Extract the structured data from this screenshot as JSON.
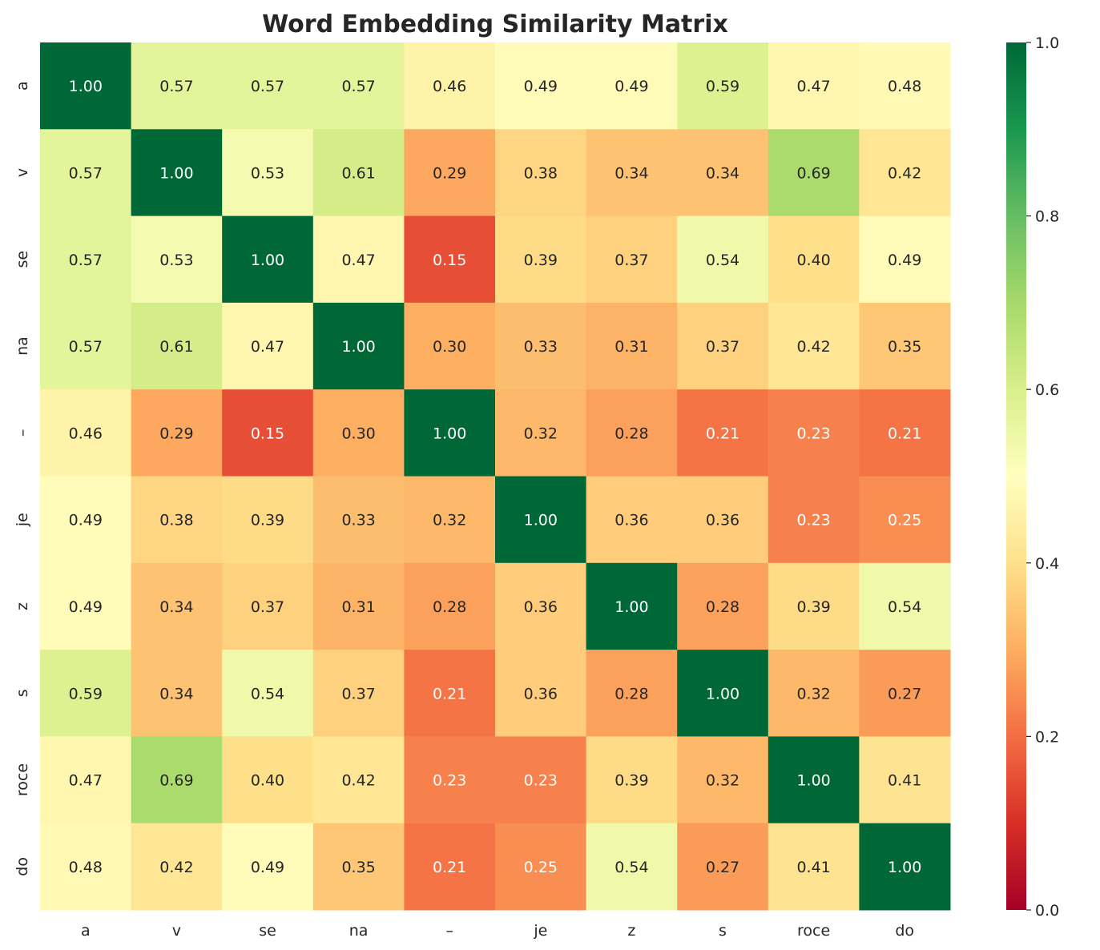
{
  "chart_data": {
    "type": "heatmap",
    "title": "Word Embedding Similarity Matrix",
    "x_labels": [
      "a",
      "v",
      "se",
      "na",
      "–",
      "je",
      "z",
      "s",
      "roce",
      "do"
    ],
    "y_labels": [
      "a",
      "v",
      "se",
      "na",
      "–",
      "je",
      "z",
      "s",
      "roce",
      "do"
    ],
    "values": [
      [
        1.0,
        0.57,
        0.57,
        0.57,
        0.46,
        0.49,
        0.49,
        0.59,
        0.47,
        0.48
      ],
      [
        0.57,
        1.0,
        0.53,
        0.61,
        0.29,
        0.38,
        0.34,
        0.34,
        0.69,
        0.42
      ],
      [
        0.57,
        0.53,
        1.0,
        0.47,
        0.15,
        0.39,
        0.37,
        0.54,
        0.4,
        0.49
      ],
      [
        0.57,
        0.61,
        0.47,
        1.0,
        0.3,
        0.33,
        0.31,
        0.37,
        0.42,
        0.35
      ],
      [
        0.46,
        0.29,
        0.15,
        0.3,
        1.0,
        0.32,
        0.28,
        0.21,
        0.23,
        0.21
      ],
      [
        0.49,
        0.38,
        0.39,
        0.33,
        0.32,
        1.0,
        0.36,
        0.36,
        0.23,
        0.25
      ],
      [
        0.49,
        0.34,
        0.37,
        0.31,
        0.28,
        0.36,
        1.0,
        0.28,
        0.39,
        0.54
      ],
      [
        0.59,
        0.34,
        0.54,
        0.37,
        0.21,
        0.36,
        0.28,
        1.0,
        0.32,
        0.27
      ],
      [
        0.47,
        0.69,
        0.4,
        0.42,
        0.23,
        0.23,
        0.39,
        0.32,
        1.0,
        0.41
      ],
      [
        0.48,
        0.42,
        0.49,
        0.35,
        0.21,
        0.25,
        0.54,
        0.27,
        0.41,
        1.0
      ]
    ],
    "annotation_format": "0.00",
    "colormap": "RdYlGn",
    "colormap_stops": [
      "#a50026",
      "#d73027",
      "#f46d43",
      "#fdae61",
      "#fee08b",
      "#ffffbf",
      "#d9ef8b",
      "#a6d96a",
      "#66bd63",
      "#1a9850",
      "#006837"
    ],
    "vmin": 0.0,
    "vmax": 1.0,
    "colorbar_ticks": [
      "0.0",
      "0.2",
      "0.4",
      "0.6",
      "0.8",
      "1.0"
    ],
    "colorbar_position": "right",
    "grid": false
  }
}
